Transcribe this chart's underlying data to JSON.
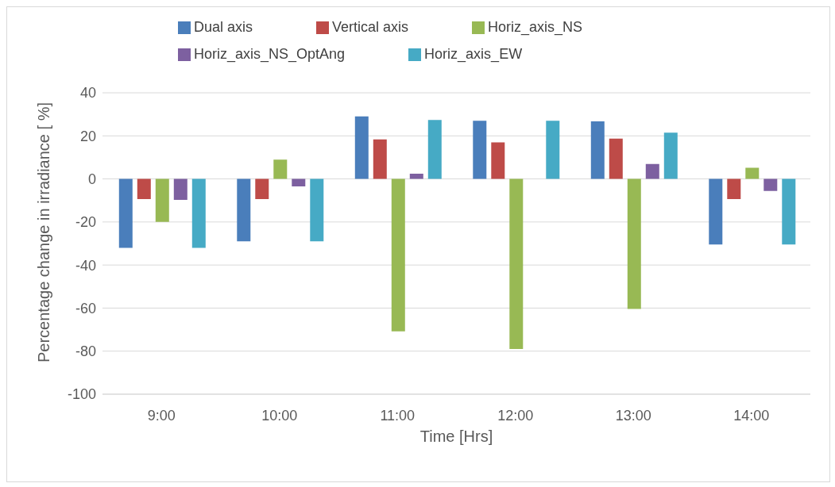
{
  "chart_data": {
    "type": "bar",
    "xlabel": "Time [Hrs]",
    "ylabel": "Percentage change in irradiance [ %]",
    "categories": [
      "9:00",
      "10:00",
      "11:00",
      "12:00",
      "13:00",
      "14:00"
    ],
    "series": [
      {
        "name": "Dual axis",
        "color": "#4a7ebb",
        "values": [
          -32,
          -29,
          29,
          27,
          26.7,
          -30.5
        ]
      },
      {
        "name": "Vertical axis",
        "color": "#be4b48",
        "values": [
          -9.4,
          -9.4,
          18.4,
          17,
          18.7,
          -9.4
        ]
      },
      {
        "name": "Horiz_axis_NS",
        "color": "#98b954",
        "values": [
          -20,
          9,
          -70.8,
          -79,
          -60.4,
          5.2
        ]
      },
      {
        "name": "Horiz_axis_NS_OptAng",
        "color": "#7d60a0",
        "values": [
          -9.7,
          -3.5,
          2.4,
          null,
          6.9,
          -5.6
        ]
      },
      {
        "name": "Horiz_axis_EW",
        "color": "#46aac5",
        "values": [
          -32,
          -29,
          27.4,
          27,
          21.5,
          -30.5
        ]
      }
    ],
    "ylim": [
      -100,
      40
    ],
    "yticks": [
      -100,
      -80,
      -60,
      -40,
      -20,
      0,
      20,
      40
    ],
    "grid": "y",
    "legend": "top"
  }
}
